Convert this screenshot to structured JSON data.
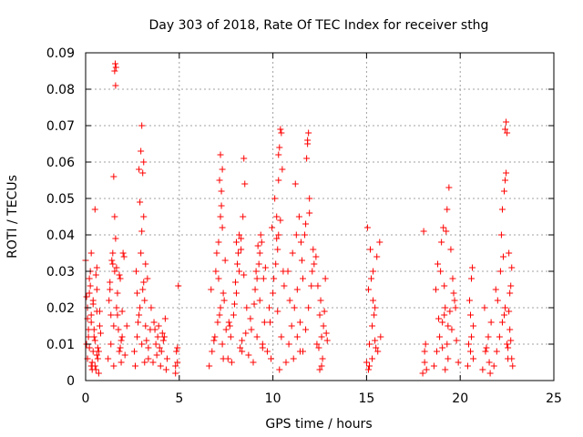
{
  "chart_data": {
    "type": "scatter",
    "title": "Day 303 of 2018, Rate Of TEC Index for receiver sthg",
    "xlabel": "GPS time / hours",
    "ylabel": "ROTI / TECUs",
    "xlim": [
      0,
      25
    ],
    "ylim": [
      0,
      0.09
    ],
    "xticks": [
      0,
      5,
      10,
      15,
      20,
      25
    ],
    "xtick_labels": [
      "0",
      "5",
      "10",
      "15",
      "20",
      "25"
    ],
    "yticks": [
      0,
      0.01,
      0.02,
      0.03,
      0.04,
      0.05,
      0.06,
      0.07,
      0.08,
      0.09
    ],
    "ytick_labels": [
      "0",
      "0.01",
      "0.02",
      "0.03",
      "0.04",
      "0.05",
      "0.06",
      "0.07",
      "0.08",
      "0.09"
    ],
    "grid": true,
    "marker": "+",
    "color": "#ff0000",
    "series": [
      {
        "name": "ROTI",
        "x": [
          0.1,
          0.2,
          0.3,
          0.45,
          0.6,
          0.75,
          0.1,
          0.3,
          0.5,
          0.7,
          0.0,
          0.2,
          0.4,
          0.6,
          0.15,
          0.35,
          0.55,
          0.25,
          0.5,
          0.05,
          0.3,
          0.6,
          0.8,
          0.2,
          0.4,
          0.65,
          0.55,
          0.3,
          0.7,
          0.1,
          0.5,
          0.4,
          0.15,
          0.65,
          0.35,
          0.75,
          0.25,
          0.45,
          0.05,
          0.6,
          1.2,
          1.35,
          1.5,
          1.65,
          1.8,
          1.95,
          1.3,
          1.55,
          1.7,
          1.9,
          1.25,
          1.45,
          1.6,
          1.85,
          1.4,
          1.75,
          1.5,
          1.6,
          1.55,
          1.58,
          1.62,
          1.55,
          1.45,
          1.8,
          2.0,
          2.05,
          1.35,
          1.7,
          1.9,
          1.5,
          2.1,
          2.2,
          1.95,
          1.3,
          1.65,
          1.85,
          2.6,
          2.75,
          2.9,
          3.05,
          3.2,
          3.35,
          2.7,
          2.85,
          3.0,
          3.15,
          3.3,
          2.8,
          2.95,
          3.1,
          2.9,
          3.0,
          3.05,
          2.95,
          3.1,
          3.0,
          2.85,
          3.2,
          3.45,
          3.5,
          2.65,
          3.25,
          3.1,
          2.75,
          3.35,
          3.15,
          3.6,
          3.75,
          3.9,
          4.05,
          4.2,
          4.35,
          3.7,
          3.95,
          4.15,
          4.3,
          3.8,
          4.1,
          3.65,
          4.0,
          4.25,
          3.85,
          4.8,
          4.9,
          4.85,
          4.95,
          4.8,
          4.9,
          6.6,
          6.75,
          6.9,
          7.05,
          7.2,
          7.35,
          6.7,
          6.95,
          7.15,
          7.3,
          7.0,
          7.1,
          7.2,
          7.25,
          7.3,
          7.15,
          7.2,
          7.3,
          7.25,
          7.1,
          7.4,
          7.5,
          6.85,
          7.45,
          7.35,
          7.6,
          7.75,
          7.9,
          8.05,
          8.2,
          8.35,
          7.7,
          7.95,
          8.15,
          8.3,
          8.0,
          8.1,
          8.2,
          8.4,
          8.5,
          8.45,
          8.3,
          8.6,
          8.55,
          8.25,
          7.8,
          8.05,
          7.65,
          8.35,
          8.45,
          8.7,
          8.85,
          9.0,
          9.15,
          9.3,
          9.45,
          8.8,
          9.05,
          9.25,
          9.4,
          9.1,
          9.2,
          9.35,
          9.5,
          9.3,
          9.6,
          9.55,
          9.15,
          8.95,
          9.45,
          9.7,
          9.85,
          10.0,
          10.15,
          10.3,
          10.45,
          9.8,
          10.05,
          10.25,
          10.4,
          10.2,
          10.3,
          10.35,
          10.4,
          10.45,
          10.5,
          10.3,
          10.1,
          9.95,
          10.2,
          10.55,
          10.25,
          9.9,
          10.6,
          10.35,
          10.7,
          10.85,
          11.0,
          11.15,
          11.3,
          11.45,
          10.8,
          11.05,
          11.25,
          11.4,
          11.2,
          11.5,
          11.6,
          11.55,
          11.45,
          11.3,
          10.9,
          11.1,
          11.6,
          11.75,
          11.9,
          12.05,
          12.2,
          12.35,
          11.7,
          11.95,
          12.15,
          11.8,
          11.85,
          11.9,
          11.85,
          11.95,
          11.75,
          12.1,
          12.3,
          12.4,
          12.5,
          12.6,
          12.65,
          12.55,
          12.45,
          12.7,
          12.8,
          12.9,
          12.6,
          12.75,
          12.5,
          12.85,
          15.0,
          15.15,
          15.3,
          15.45,
          15.6,
          15.75,
          15.1,
          15.35,
          15.55,
          15.7,
          15.05,
          15.2,
          15.35,
          15.4,
          15.25,
          15.1,
          15.3,
          15.45,
          15.15,
          15.5,
          18.0,
          18.1,
          18.15,
          18.05,
          18.2,
          18.1,
          18.6,
          18.75,
          18.9,
          19.05,
          19.2,
          19.35,
          18.7,
          18.95,
          19.15,
          19.3,
          18.8,
          19.0,
          19.25,
          19.1,
          19.3,
          19.4,
          19.5,
          19.6,
          19.7,
          19.55,
          19.8,
          19.45,
          19.65,
          19.35,
          19.9,
          19.75,
          19.2,
          19.05,
          18.85,
          19.15,
          20.4,
          20.55,
          20.7,
          20.5,
          20.6,
          20.65,
          20.45,
          20.55,
          20.7,
          20.6,
          21.2,
          21.35,
          21.5,
          21.65,
          21.3,
          21.55,
          21.4,
          21.6,
          21.8,
          21.95,
          22.1,
          22.25,
          22.4,
          22.55,
          21.9,
          22.15,
          22.35,
          22.5,
          22.0,
          22.3,
          22.2,
          22.25,
          22.35,
          22.4,
          22.45,
          22.4,
          22.45,
          22.5,
          22.6,
          22.7,
          22.75,
          22.65,
          22.55,
          22.8,
          22.7,
          22.6,
          22.75,
          22.65
        ],
        "y": [
          0.006,
          0.009,
          0.004,
          0.012,
          0.007,
          0.015,
          0.02,
          0.018,
          0.011,
          0.008,
          0.033,
          0.028,
          0.022,
          0.025,
          0.014,
          0.005,
          0.003,
          0.03,
          0.047,
          0.01,
          0.016,
          0.019,
          0.013,
          0.024,
          0.021,
          0.009,
          0.029,
          0.035,
          0.002,
          0.017,
          0.004,
          0.008,
          0.012,
          0.006,
          0.003,
          0.019,
          0.026,
          0.014,
          0.023,
          0.031,
          0.006,
          0.01,
          0.015,
          0.02,
          0.008,
          0.012,
          0.025,
          0.03,
          0.018,
          0.005,
          0.022,
          0.035,
          0.039,
          0.028,
          0.033,
          0.014,
          0.056,
          0.081,
          0.085,
          0.087,
          0.086,
          0.045,
          0.032,
          0.029,
          0.035,
          0.034,
          0.018,
          0.024,
          0.011,
          0.004,
          0.007,
          0.015,
          0.019,
          0.027,
          0.031,
          0.009,
          0.008,
          0.012,
          0.02,
          0.025,
          0.015,
          0.006,
          0.03,
          0.018,
          0.01,
          0.022,
          0.028,
          0.016,
          0.035,
          0.045,
          0.049,
          0.041,
          0.057,
          0.063,
          0.06,
          0.07,
          0.058,
          0.032,
          0.014,
          0.02,
          0.004,
          0.011,
          0.027,
          0.024,
          0.009,
          0.005,
          0.005,
          0.01,
          0.015,
          0.008,
          0.012,
          0.006,
          0.014,
          0.009,
          0.011,
          0.003,
          0.007,
          0.013,
          0.016,
          0.004,
          0.017,
          0.012,
          0.002,
          0.005,
          0.008,
          0.026,
          0.004,
          0.009,
          0.004,
          0.008,
          0.012,
          0.016,
          0.02,
          0.006,
          0.025,
          0.03,
          0.018,
          0.01,
          0.035,
          0.038,
          0.045,
          0.052,
          0.058,
          0.055,
          0.062,
          0.042,
          0.048,
          0.028,
          0.022,
          0.014,
          0.011,
          0.033,
          0.024,
          0.006,
          0.012,
          0.018,
          0.024,
          0.03,
          0.008,
          0.015,
          0.021,
          0.035,
          0.039,
          0.027,
          0.032,
          0.04,
          0.045,
          0.054,
          0.061,
          0.036,
          0.02,
          0.013,
          0.009,
          0.005,
          0.038,
          0.016,
          0.011,
          0.029,
          0.007,
          0.014,
          0.021,
          0.028,
          0.035,
          0.01,
          0.017,
          0.025,
          0.032,
          0.038,
          0.03,
          0.037,
          0.04,
          0.028,
          0.022,
          0.031,
          0.016,
          0.012,
          0.005,
          0.009,
          0.008,
          0.016,
          0.024,
          0.032,
          0.04,
          0.012,
          0.02,
          0.028,
          0.036,
          0.044,
          0.045,
          0.055,
          0.064,
          0.069,
          0.068,
          0.058,
          0.062,
          0.05,
          0.042,
          0.039,
          0.03,
          0.019,
          0.006,
          0.026,
          0.003,
          0.005,
          0.01,
          0.015,
          0.02,
          0.025,
          0.008,
          0.03,
          0.035,
          0.04,
          0.045,
          0.054,
          0.038,
          0.028,
          0.033,
          0.016,
          0.012,
          0.022,
          0.006,
          0.008,
          0.014,
          0.02,
          0.026,
          0.032,
          0.01,
          0.04,
          0.046,
          0.036,
          0.061,
          0.066,
          0.068,
          0.065,
          0.05,
          0.043,
          0.03,
          0.034,
          0.026,
          0.018,
          0.012,
          0.006,
          0.022,
          0.009,
          0.015,
          0.028,
          0.011,
          0.004,
          0.019,
          0.003,
          0.013,
          0.005,
          0.01,
          0.015,
          0.02,
          0.008,
          0.012,
          0.025,
          0.03,
          0.034,
          0.038,
          0.042,
          0.036,
          0.022,
          0.018,
          0.028,
          0.003,
          0.006,
          0.011,
          0.004,
          0.009,
          0.002,
          0.005,
          0.01,
          0.041,
          0.003,
          0.008,
          0.004,
          0.008,
          0.012,
          0.016,
          0.02,
          0.006,
          0.025,
          0.03,
          0.018,
          0.01,
          0.032,
          0.038,
          0.041,
          0.042,
          0.047,
          0.053,
          0.036,
          0.028,
          0.022,
          0.014,
          0.011,
          0.019,
          0.024,
          0.015,
          0.005,
          0.02,
          0.003,
          0.009,
          0.017,
          0.026,
          0.004,
          0.008,
          0.015,
          0.022,
          0.028,
          0.031,
          0.01,
          0.018,
          0.006,
          0.012,
          0.003,
          0.008,
          0.012,
          0.016,
          0.02,
          0.005,
          0.009,
          0.002,
          0.004,
          0.008,
          0.012,
          0.016,
          0.02,
          0.006,
          0.025,
          0.03,
          0.018,
          0.01,
          0.022,
          0.034,
          0.04,
          0.047,
          0.052,
          0.055,
          0.057,
          0.069,
          0.071,
          0.068,
          0.035,
          0.026,
          0.031,
          0.014,
          0.009,
          0.004,
          0.011,
          0.019,
          0.006,
          0.024
        ]
      }
    ]
  }
}
